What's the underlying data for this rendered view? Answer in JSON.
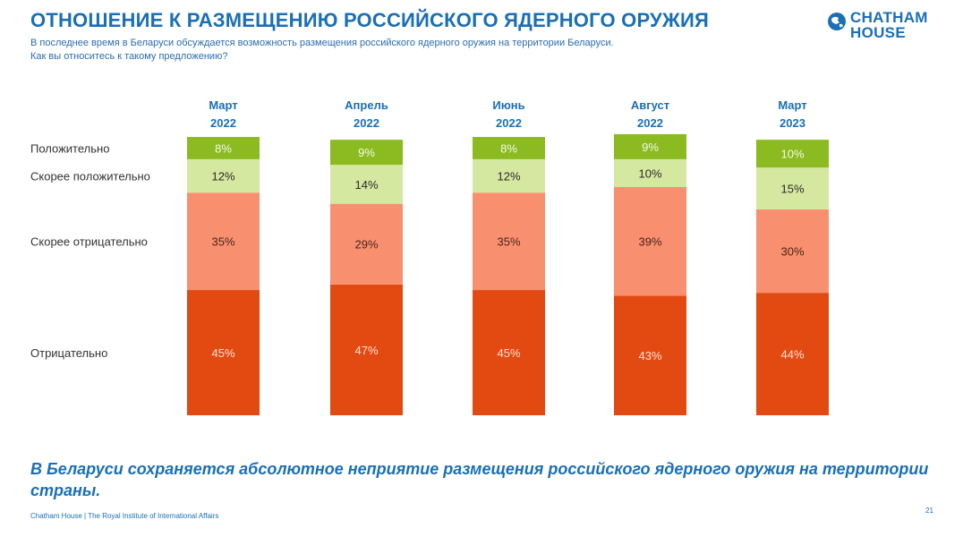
{
  "header": {
    "title": "ОТНОШЕНИЕ К РАЗМЕЩЕНИЮ РОССИЙСКОГО ЯДЕРНОГО ОРУЖИЯ",
    "question_line1": "В последнее время в Беларуси обсуждается возможность размещения российского ядерного оружия на территории Беларуси.",
    "question_line2": "Как вы относитесь к такому предложению?"
  },
  "logo": {
    "line1": "CHATHAM",
    "line2": "HOUSE",
    "icon": "globe-icon"
  },
  "chart_data": {
    "type": "bar",
    "stacked": true,
    "categories": [
      "Март 2022",
      "Апрель 2022",
      "Июнь 2022",
      "Август 2022",
      "Март 2023"
    ],
    "category_lines": [
      [
        "Март",
        "2022"
      ],
      [
        "Апрель",
        "2022"
      ],
      [
        "Июнь",
        "2022"
      ],
      [
        "Август",
        "2022"
      ],
      [
        "Март",
        "2023"
      ]
    ],
    "series": [
      {
        "name": "Отрицательно",
        "values": [
          45,
          47,
          45,
          43,
          44
        ],
        "color": "#e24a12",
        "label_color": "#ffe3d6"
      },
      {
        "name": "Скорее отрицательно",
        "values": [
          35,
          29,
          35,
          39,
          30
        ],
        "color": "#f89070",
        "label_color": "#4a2418"
      },
      {
        "name": "Скорее положительно",
        "values": [
          12,
          14,
          12,
          10,
          15
        ],
        "color": "#d4e89f",
        "label_color": "#2b2b2b"
      },
      {
        "name": "Положительно",
        "values": [
          8,
          9,
          8,
          9,
          10
        ],
        "color": "#8bbb20",
        "label_color": "#f5fbe6"
      }
    ],
    "value_suffix": "%",
    "ylim": [
      0,
      100
    ]
  },
  "takeaway": "В Беларуси сохраняется абсолютное неприятие размещения российского ядерного оружия на территории страны.",
  "footer": "Chatham House  |  The Royal Institute of International Affairs",
  "page_number": "21"
}
